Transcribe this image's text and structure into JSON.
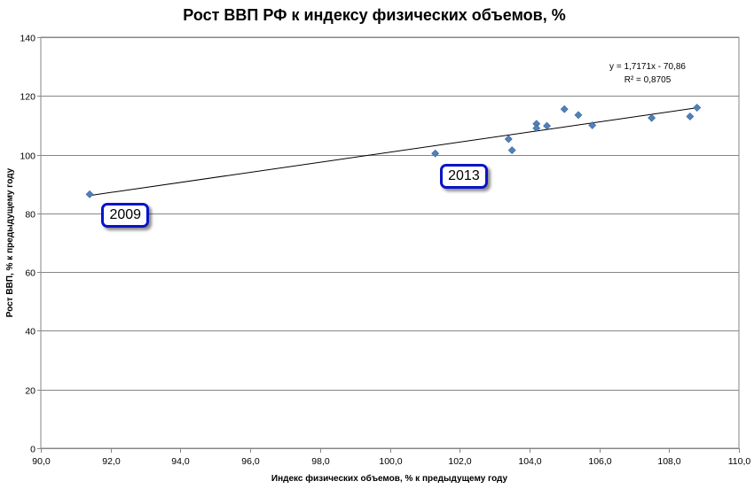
{
  "chart_data": {
    "type": "scatter",
    "title": "Рост ВВП РФ к индексу физических объемов, %",
    "xlabel": "Индекс физических объемов, % к предыдущему году",
    "ylabel": "Рост ВВП, % к предыдущему году",
    "xlim": [
      90,
      110
    ],
    "ylim": [
      0,
      140
    ],
    "x_ticks": [
      "90,0",
      "92,0",
      "94,0",
      "96,0",
      "98,0",
      "100,0",
      "102,0",
      "104,0",
      "106,0",
      "108,0",
      "110,0"
    ],
    "y_ticks": [
      "0",
      "20",
      "40",
      "60",
      "80",
      "100",
      "120",
      "140"
    ],
    "grid": "horizontal",
    "marker_color": "#4f81bd",
    "points": [
      {
        "x": 91.4,
        "y": 86.5
      },
      {
        "x": 101.3,
        "y": 100.4
      },
      {
        "x": 103.4,
        "y": 105.3
      },
      {
        "x": 103.5,
        "y": 101.5
      },
      {
        "x": 104.2,
        "y": 110.5
      },
      {
        "x": 104.2,
        "y": 109.0
      },
      {
        "x": 104.5,
        "y": 109.8
      },
      {
        "x": 105.0,
        "y": 115.5
      },
      {
        "x": 105.4,
        "y": 113.5
      },
      {
        "x": 105.8,
        "y": 110.0
      },
      {
        "x": 107.5,
        "y": 112.5
      },
      {
        "x": 108.6,
        "y": 113.0
      },
      {
        "x": 108.8,
        "y": 116.0
      }
    ],
    "trendline": {
      "slope": 1.7171,
      "intercept": -70.86,
      "x_range": [
        91.4,
        108.8
      ],
      "equation": "y = 1,7171x - 70,86",
      "r_squared": "R² = 0,8705"
    },
    "annotations": [
      {
        "text": "2009",
        "x": 92.4,
        "y": 79.5
      },
      {
        "text": "2013",
        "x": 102.1,
        "y": 92.5
      }
    ]
  }
}
